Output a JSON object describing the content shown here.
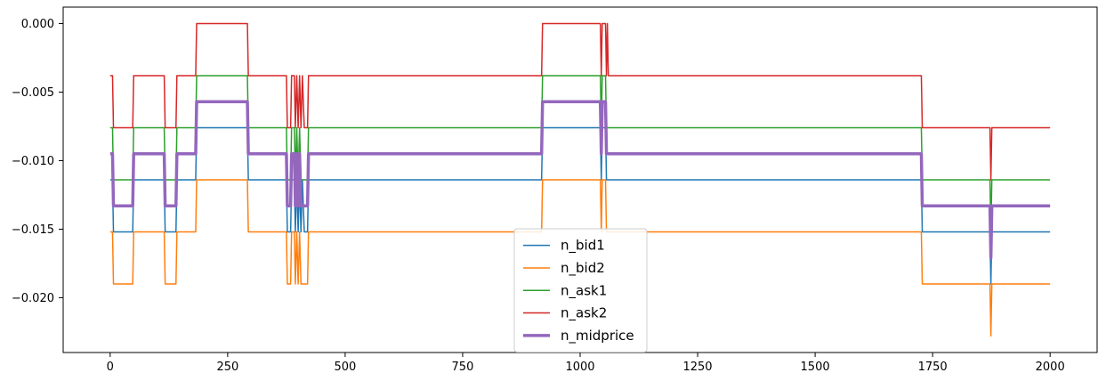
{
  "chart_data": {
    "type": "line",
    "title": "",
    "xlabel": "",
    "ylabel": "",
    "xlim": [
      -100,
      2100
    ],
    "ylim": [
      -0.024,
      0.0012
    ],
    "xticks": [
      0,
      250,
      500,
      750,
      1000,
      1250,
      1500,
      1750,
      2000
    ],
    "xtick_labels": [
      "0",
      "250",
      "500",
      "750",
      "1000",
      "1250",
      "1500",
      "1750",
      "2000"
    ],
    "yticks": [
      0.0,
      -0.005,
      -0.01,
      -0.015,
      -0.02
    ],
    "ytick_labels": [
      "0.000",
      "−0.005",
      "−0.010",
      "−0.015",
      "−0.020"
    ],
    "grid": false,
    "legend_position": "bottom-center",
    "series": [
      {
        "name": "n_bid1",
        "color": "#1f77b4",
        "width": "thin",
        "points": [
          [
            0,
            -0.0114
          ],
          [
            5,
            -0.0114
          ],
          [
            7,
            -0.0152
          ],
          [
            48,
            -0.0152
          ],
          [
            50,
            -0.0114
          ],
          [
            115,
            -0.0114
          ],
          [
            117,
            -0.0152
          ],
          [
            140,
            -0.0152
          ],
          [
            142,
            -0.0114
          ],
          [
            182,
            -0.0114
          ],
          [
            184,
            -0.0076
          ],
          [
            292,
            -0.0076
          ],
          [
            294,
            -0.0114
          ],
          [
            375,
            -0.0114
          ],
          [
            377,
            -0.0152
          ],
          [
            384,
            -0.0152
          ],
          [
            386,
            -0.0114
          ],
          [
            392,
            -0.0114
          ],
          [
            394,
            -0.0152
          ],
          [
            397,
            -0.0114
          ],
          [
            400,
            -0.0152
          ],
          [
            403,
            -0.0114
          ],
          [
            406,
            -0.0152
          ],
          [
            409,
            -0.0114
          ],
          [
            413,
            -0.0152
          ],
          [
            420,
            -0.0152
          ],
          [
            422,
            -0.0114
          ],
          [
            918,
            -0.0114
          ],
          [
            920,
            -0.0076
          ],
          [
            1043,
            -0.0076
          ],
          [
            1045,
            -0.0114
          ],
          [
            1047,
            -0.0076
          ],
          [
            1054,
            -0.0076
          ],
          [
            1056,
            -0.0114
          ],
          [
            1058,
            -0.0114
          ],
          [
            1060,
            -0.0114
          ],
          [
            1726,
            -0.0114
          ],
          [
            1728,
            -0.0152
          ],
          [
            1872,
            -0.0152
          ],
          [
            1874,
            -0.019
          ],
          [
            1876,
            -0.0152
          ],
          [
            2000,
            -0.0152
          ]
        ]
      },
      {
        "name": "n_bid2",
        "color": "#ff7f0e",
        "width": "thin",
        "points": [
          [
            0,
            -0.0152
          ],
          [
            5,
            -0.0152
          ],
          [
            7,
            -0.019
          ],
          [
            48,
            -0.019
          ],
          [
            50,
            -0.0152
          ],
          [
            115,
            -0.0152
          ],
          [
            117,
            -0.019
          ],
          [
            140,
            -0.019
          ],
          [
            142,
            -0.0152
          ],
          [
            182,
            -0.0152
          ],
          [
            184,
            -0.0114
          ],
          [
            292,
            -0.0114
          ],
          [
            294,
            -0.0152
          ],
          [
            375,
            -0.0152
          ],
          [
            377,
            -0.019
          ],
          [
            384,
            -0.019
          ],
          [
            386,
            -0.0152
          ],
          [
            392,
            -0.0152
          ],
          [
            394,
            -0.019
          ],
          [
            397,
            -0.0152
          ],
          [
            400,
            -0.019
          ],
          [
            403,
            -0.0152
          ],
          [
            406,
            -0.019
          ],
          [
            420,
            -0.019
          ],
          [
            422,
            -0.0152
          ],
          [
            918,
            -0.0152
          ],
          [
            920,
            -0.0114
          ],
          [
            1043,
            -0.0114
          ],
          [
            1045,
            -0.0152
          ],
          [
            1047,
            -0.0114
          ],
          [
            1054,
            -0.0114
          ],
          [
            1056,
            -0.0152
          ],
          [
            1726,
            -0.0152
          ],
          [
            1728,
            -0.019
          ],
          [
            1872,
            -0.019
          ],
          [
            1874,
            -0.0228
          ],
          [
            1876,
            -0.019
          ],
          [
            2000,
            -0.019
          ]
        ]
      },
      {
        "name": "n_ask1",
        "color": "#2ca02c",
        "width": "thin",
        "points": [
          [
            0,
            -0.0076
          ],
          [
            5,
            -0.0076
          ],
          [
            7,
            -0.0114
          ],
          [
            48,
            -0.0114
          ],
          [
            50,
            -0.0076
          ],
          [
            115,
            -0.0076
          ],
          [
            117,
            -0.0114
          ],
          [
            140,
            -0.0114
          ],
          [
            142,
            -0.0076
          ],
          [
            182,
            -0.0076
          ],
          [
            184,
            -0.0038
          ],
          [
            292,
            -0.0038
          ],
          [
            294,
            -0.0076
          ],
          [
            375,
            -0.0076
          ],
          [
            377,
            -0.0114
          ],
          [
            384,
            -0.0114
          ],
          [
            386,
            -0.0076
          ],
          [
            392,
            -0.0076
          ],
          [
            394,
            -0.0114
          ],
          [
            397,
            -0.0076
          ],
          [
            400,
            -0.0114
          ],
          [
            403,
            -0.0076
          ],
          [
            406,
            -0.0114
          ],
          [
            420,
            -0.0114
          ],
          [
            422,
            -0.0076
          ],
          [
            918,
            -0.0076
          ],
          [
            920,
            -0.0038
          ],
          [
            1043,
            -0.0038
          ],
          [
            1045,
            -0.0076
          ],
          [
            1047,
            -0.0038
          ],
          [
            1054,
            -0.0038
          ],
          [
            1056,
            -0.0076
          ],
          [
            1726,
            -0.0076
          ],
          [
            1728,
            -0.0114
          ],
          [
            1872,
            -0.0114
          ],
          [
            1874,
            -0.0152
          ],
          [
            1876,
            -0.0114
          ],
          [
            2000,
            -0.0114
          ]
        ]
      },
      {
        "name": "n_ask2",
        "color": "#d62728",
        "width": "thin",
        "points": [
          [
            0,
            -0.0038
          ],
          [
            5,
            -0.0038
          ],
          [
            7,
            -0.0076
          ],
          [
            48,
            -0.0076
          ],
          [
            50,
            -0.0038
          ],
          [
            115,
            -0.0038
          ],
          [
            117,
            -0.0076
          ],
          [
            140,
            -0.0076
          ],
          [
            142,
            -0.0038
          ],
          [
            182,
            -0.0038
          ],
          [
            184,
            0.0
          ],
          [
            292,
            0.0
          ],
          [
            294,
            -0.0038
          ],
          [
            375,
            -0.0038
          ],
          [
            377,
            -0.0076
          ],
          [
            384,
            -0.0076
          ],
          [
            386,
            -0.0038
          ],
          [
            392,
            -0.0038
          ],
          [
            394,
            -0.0076
          ],
          [
            397,
            -0.0038
          ],
          [
            400,
            -0.0076
          ],
          [
            403,
            -0.0038
          ],
          [
            406,
            -0.0076
          ],
          [
            409,
            -0.0038
          ],
          [
            413,
            -0.0076
          ],
          [
            420,
            -0.0076
          ],
          [
            422,
            -0.0038
          ],
          [
            918,
            -0.0038
          ],
          [
            920,
            0.0
          ],
          [
            1043,
            0.0
          ],
          [
            1045,
            -0.0038
          ],
          [
            1047,
            0.0
          ],
          [
            1054,
            0.0
          ],
          [
            1056,
            -0.0038
          ],
          [
            1058,
            0.0
          ],
          [
            1060,
            -0.0038
          ],
          [
            1726,
            -0.0038
          ],
          [
            1728,
            -0.0076
          ],
          [
            1872,
            -0.0076
          ],
          [
            1874,
            -0.0114
          ],
          [
            1876,
            -0.0076
          ],
          [
            2000,
            -0.0076
          ]
        ]
      },
      {
        "name": "n_midprice",
        "color": "#9467bd",
        "width": "thick",
        "points": [
          [
            0,
            -0.0095
          ],
          [
            5,
            -0.0095
          ],
          [
            7,
            -0.0133
          ],
          [
            48,
            -0.0133
          ],
          [
            50,
            -0.0095
          ],
          [
            115,
            -0.0095
          ],
          [
            117,
            -0.0133
          ],
          [
            140,
            -0.0133
          ],
          [
            142,
            -0.0095
          ],
          [
            182,
            -0.0095
          ],
          [
            184,
            -0.0057
          ],
          [
            292,
            -0.0057
          ],
          [
            294,
            -0.0095
          ],
          [
            375,
            -0.0095
          ],
          [
            377,
            -0.0133
          ],
          [
            384,
            -0.0133
          ],
          [
            386,
            -0.0095
          ],
          [
            392,
            -0.0095
          ],
          [
            394,
            -0.0133
          ],
          [
            397,
            -0.0095
          ],
          [
            400,
            -0.0133
          ],
          [
            403,
            -0.0095
          ],
          [
            406,
            -0.0133
          ],
          [
            420,
            -0.0133
          ],
          [
            422,
            -0.0095
          ],
          [
            918,
            -0.0095
          ],
          [
            920,
            -0.0057
          ],
          [
            1043,
            -0.0057
          ],
          [
            1045,
            -0.0095
          ],
          [
            1047,
            -0.0057
          ],
          [
            1054,
            -0.0057
          ],
          [
            1056,
            -0.0095
          ],
          [
            1726,
            -0.0095
          ],
          [
            1728,
            -0.0133
          ],
          [
            1872,
            -0.0133
          ],
          [
            1874,
            -0.0171
          ],
          [
            1876,
            -0.0133
          ],
          [
            2000,
            -0.0133
          ]
        ]
      }
    ]
  }
}
